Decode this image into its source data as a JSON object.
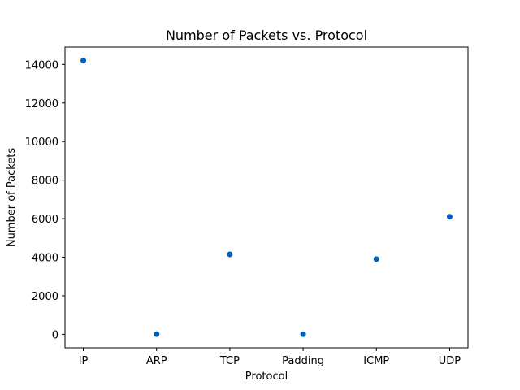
{
  "chart_data": {
    "type": "scatter",
    "title": "Number of Packets vs. Protocol",
    "xlabel": "Protocol",
    "ylabel": "Number of Packets",
    "categories": [
      "IP",
      "ARP",
      "TCP",
      "Padding",
      "ICMP",
      "UDP"
    ],
    "values": [
      14200,
      10,
      4150,
      5,
      3900,
      6100
    ],
    "ylim": [
      -700,
      14900
    ],
    "yticks": [
      0,
      2000,
      4000,
      6000,
      8000,
      10000,
      12000,
      14000
    ],
    "grid": false,
    "marker_color": "#0060c0"
  }
}
